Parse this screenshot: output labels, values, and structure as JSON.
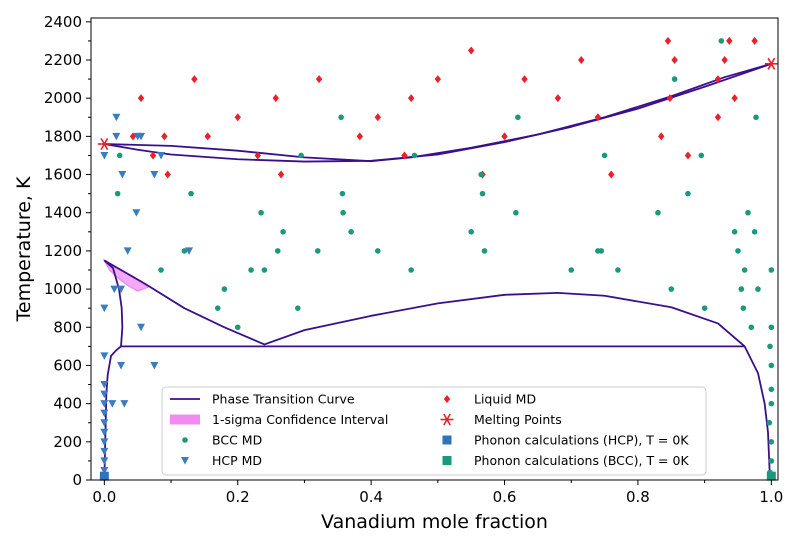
{
  "chart_data": {
    "type": "scatter",
    "xlabel": "Vanadium mole fraction",
    "ylabel": "Temperature, K",
    "xlim": [
      -0.02,
      1.01
    ],
    "ylim": [
      0,
      2420
    ],
    "xticks": [
      "0.0",
      "0.2",
      "0.4",
      "0.6",
      "0.8",
      "1.0"
    ],
    "yticks": [
      "0",
      "200",
      "400",
      "600",
      "800",
      "1000",
      "1200",
      "1400",
      "1600",
      "1800",
      "2000",
      "2200",
      "2400"
    ],
    "grid": false,
    "legend_position": "bottom-center",
    "colors": {
      "phase_curve": "#3b0f8c",
      "confidence": "#f08cf0",
      "bcc": "#1a9a7a",
      "hcp": "#3a7dbf",
      "liquid": "#e8212a",
      "melting": "#e8212a",
      "phonon_hcp": "#2f73b8",
      "phonon_bcc": "#1a9a7a"
    },
    "legend": [
      {
        "label": "Phase Transition Curve",
        "marker": "line"
      },
      {
        "label": "1-sigma Confidence Interval",
        "marker": "band"
      },
      {
        "label": "BCC MD",
        "marker": "circle"
      },
      {
        "label": "HCP MD",
        "marker": "triangle"
      },
      {
        "label": "Liquid MD",
        "marker": "diamond"
      },
      {
        "label": "Melting Points",
        "marker": "star"
      },
      {
        "label": "Phonon calculations (HCP), T = 0K",
        "marker": "square-hcp"
      },
      {
        "label": "Phonon calculations (BCC), T = 0K",
        "marker": "square-bcc"
      }
    ],
    "series": [
      {
        "name": "Liquid MD",
        "points": [
          [
            0.043,
            1800
          ],
          [
            0.055,
            2000
          ],
          [
            0.073,
            1700
          ],
          [
            0.09,
            1800
          ],
          [
            0.095,
            1600
          ],
          [
            0.135,
            2100
          ],
          [
            0.155,
            1800
          ],
          [
            0.2,
            1900
          ],
          [
            0.23,
            1700
          ],
          [
            0.257,
            2000
          ],
          [
            0.265,
            1600
          ],
          [
            0.322,
            2100
          ],
          [
            0.383,
            1800
          ],
          [
            0.41,
            1900
          ],
          [
            0.45,
            1700
          ],
          [
            0.46,
            2000
          ],
          [
            0.5,
            2100
          ],
          [
            0.55,
            2250
          ],
          [
            0.567,
            1600
          ],
          [
            0.6,
            1800
          ],
          [
            0.63,
            2100
          ],
          [
            0.68,
            2000
          ],
          [
            0.715,
            2200
          ],
          [
            0.74,
            1900
          ],
          [
            0.76,
            1600
          ],
          [
            0.835,
            1800
          ],
          [
            0.845,
            2300
          ],
          [
            0.848,
            2000
          ],
          [
            0.855,
            2200
          ],
          [
            0.875,
            1700
          ],
          [
            0.92,
            2100
          ],
          [
            0.92,
            1900
          ],
          [
            0.93,
            2200
          ],
          [
            0.937,
            2300
          ],
          [
            0.945,
            2000
          ],
          [
            0.975,
            2300
          ]
        ]
      },
      {
        "name": "BCC MD",
        "points": [
          [
            0.023,
            1700
          ],
          [
            0.02,
            1500
          ],
          [
            0.085,
            1100
          ],
          [
            0.13,
            1500
          ],
          [
            0.12,
            1200
          ],
          [
            0.17,
            900
          ],
          [
            0.18,
            1000
          ],
          [
            0.2,
            800
          ],
          [
            0.22,
            1100
          ],
          [
            0.235,
            1400
          ],
          [
            0.24,
            1100
          ],
          [
            0.26,
            1200
          ],
          [
            0.268,
            1300
          ],
          [
            0.29,
            900
          ],
          [
            0.295,
            1700
          ],
          [
            0.32,
            1200
          ],
          [
            0.355,
            1900
          ],
          [
            0.357,
            1500
          ],
          [
            0.358,
            1400
          ],
          [
            0.37,
            1300
          ],
          [
            0.41,
            1200
          ],
          [
            0.46,
            1100
          ],
          [
            0.465,
            1700
          ],
          [
            0.55,
            1300
          ],
          [
            0.565,
            1600
          ],
          [
            0.567,
            1500
          ],
          [
            0.57,
            1200
          ],
          [
            0.617,
            1400
          ],
          [
            0.62,
            1900
          ],
          [
            0.7,
            1100
          ],
          [
            0.74,
            1200
          ],
          [
            0.745,
            1200
          ],
          [
            0.75,
            1700
          ],
          [
            0.77,
            1100
          ],
          [
            0.83,
            1400
          ],
          [
            0.85,
            1000
          ],
          [
            0.855,
            2100
          ],
          [
            0.875,
            1500
          ],
          [
            0.895,
            1700
          ],
          [
            0.9,
            900
          ],
          [
            0.925,
            2300
          ],
          [
            0.945,
            1300
          ],
          [
            0.95,
            1200
          ],
          [
            0.955,
            1000
          ],
          [
            0.958,
            900
          ],
          [
            0.96,
            1100
          ],
          [
            0.965,
            1400
          ],
          [
            0.97,
            800
          ],
          [
            0.975,
            1300
          ],
          [
            0.977,
            1900
          ],
          [
            0.98,
            1000
          ],
          [
            1.0,
            1100
          ],
          [
            1.0,
            800
          ],
          [
            0.998,
            700
          ],
          [
            1.0,
            600
          ],
          [
            1.0,
            475
          ],
          [
            1.0,
            400
          ],
          [
            0.997,
            300
          ],
          [
            1.0,
            200
          ],
          [
            1.0,
            100
          ],
          [
            0.998,
            40
          ]
        ]
      },
      {
        "name": "HCP MD",
        "points": [
          [
            0.0,
            1700
          ],
          [
            0.018,
            1900
          ],
          [
            0.018,
            1800
          ],
          [
            0.015,
            1000
          ],
          [
            0.025,
            1000
          ],
          [
            0.027,
            1600
          ],
          [
            0.05,
            1800
          ],
          [
            0.055,
            1800
          ],
          [
            0.085,
            1700
          ],
          [
            0.075,
            1600
          ],
          [
            0.048,
            1400
          ],
          [
            0.035,
            1200
          ],
          [
            0.127,
            1200
          ],
          [
            0.0,
            900
          ],
          [
            0.055,
            800
          ],
          [
            0.0,
            650
          ],
          [
            0.025,
            600
          ],
          [
            0.075,
            600
          ],
          [
            0.0,
            500
          ],
          [
            0.0,
            450
          ],
          [
            0.0,
            400
          ],
          [
            0.0,
            350
          ],
          [
            0.0,
            300
          ],
          [
            0.012,
            400
          ],
          [
            0.03,
            400
          ],
          [
            0.0,
            250
          ],
          [
            0.0,
            200
          ],
          [
            0.0,
            150
          ],
          [
            0.0,
            100
          ],
          [
            0.0,
            50
          ]
        ]
      },
      {
        "name": "Melting Points",
        "points": [
          [
            0.0,
            1760
          ],
          [
            1.0,
            2180
          ]
        ]
      },
      {
        "name": "Phonon calculations (HCP), T = 0K",
        "points": [
          [
            0.0,
            20
          ]
        ]
      },
      {
        "name": "Phonon calculations (BCC), T = 0K",
        "points": [
          [
            1.0,
            20
          ]
        ]
      },
      {
        "name": "Phase Transition Curve",
        "curves": [
          [
            [
              0.0,
              1760
            ],
            [
              0.05,
              1730
            ],
            [
              0.1,
              1705
            ],
            [
              0.2,
              1680
            ],
            [
              0.3,
              1668
            ],
            [
              0.4,
              1672
            ],
            [
              0.5,
              1705
            ],
            [
              0.6,
              1770
            ],
            [
              0.7,
              1850
            ],
            [
              0.8,
              1945
            ],
            [
              0.9,
              2060
            ],
            [
              1.0,
              2180
            ]
          ],
          [
            [
              0.0,
              1760
            ],
            [
              0.1,
              1750
            ],
            [
              0.2,
              1725
            ],
            [
              0.3,
              1690
            ],
            [
              0.4,
              1670
            ],
            [
              0.46,
              1690
            ],
            [
              0.55,
              1740
            ],
            [
              0.65,
              1810
            ],
            [
              0.75,
              1900
            ],
            [
              0.85,
              2010
            ],
            [
              0.93,
              2110
            ],
            [
              1.0,
              2180
            ]
          ],
          [
            [
              0.0,
              1150
            ],
            [
              0.06,
              1030
            ],
            [
              0.12,
              900
            ],
            [
              0.18,
              800
            ],
            [
              0.24,
              710
            ],
            [
              0.3,
              785
            ],
            [
              0.4,
              860
            ],
            [
              0.5,
              925
            ],
            [
              0.6,
              970
            ],
            [
              0.68,
              980
            ],
            [
              0.75,
              965
            ],
            [
              0.85,
              905
            ],
            [
              0.92,
              820
            ],
            [
              0.96,
              700
            ],
            [
              0.98,
              560
            ],
            [
              0.99,
              400
            ],
            [
              0.995,
              250
            ],
            [
              0.998,
              0
            ]
          ],
          [
            [
              0.025,
              700
            ],
            [
              0.96,
              700
            ]
          ],
          [
            [
              0.0,
              1150
            ],
            [
              0.013,
              1110
            ],
            [
              0.022,
              1000
            ],
            [
              0.026,
              900
            ],
            [
              0.027,
              800
            ],
            [
              0.025,
              700
            ],
            [
              0.018,
              680
            ],
            [
              0.01,
              650
            ],
            [
              0.005,
              550
            ],
            [
              0.003,
              450
            ],
            [
              0.002,
              300
            ],
            [
              0.001,
              150
            ],
            [
              0.0,
              0
            ]
          ]
        ]
      },
      {
        "name": "1-sigma Confidence Interval",
        "band": [
          [
            0.0,
            1150
          ],
          [
            0.015,
            1120
          ],
          [
            0.03,
            1090
          ],
          [
            0.05,
            1050
          ],
          [
            0.065,
            1010
          ],
          [
            0.05,
            990
          ],
          [
            0.035,
            1020
          ],
          [
            0.02,
            1060
          ],
          [
            0.008,
            1100
          ]
        ]
      }
    ]
  }
}
